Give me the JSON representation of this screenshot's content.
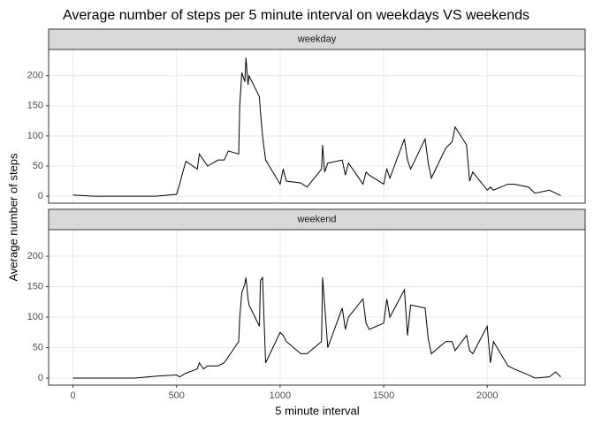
{
  "chart_data": {
    "type": "line",
    "title": "Average number of steps per 5 minute interval on weekdays VS weekends",
    "x_label": "5 minute interval",
    "y_label": "Average number of steps",
    "x": [
      0,
      100,
      200,
      300,
      400,
      500,
      515,
      530,
      545,
      600,
      610,
      630,
      650,
      700,
      730,
      750,
      800,
      805,
      815,
      830,
      835,
      845,
      850,
      900,
      905,
      915,
      930,
      1000,
      1015,
      1030,
      1100,
      1130,
      1200,
      1205,
      1215,
      1230,
      1300,
      1315,
      1330,
      1400,
      1415,
      1430,
      1500,
      1515,
      1530,
      1600,
      1615,
      1630,
      1700,
      1715,
      1730,
      1800,
      1830,
      1845,
      1900,
      1915,
      1930,
      2000,
      2015,
      2030,
      2100,
      2130,
      2200,
      2230,
      2300,
      2330,
      2355
    ],
    "series": [
      {
        "name": "weekday",
        "color": "#000000",
        "values": [
          2,
          0,
          0,
          0,
          0,
          3,
          20,
          40,
          58,
          45,
          70,
          60,
          50,
          60,
          60,
          75,
          70,
          150,
          205,
          190,
          230,
          185,
          200,
          165,
          140,
          100,
          60,
          20,
          45,
          25,
          22,
          15,
          45,
          85,
          40,
          55,
          60,
          35,
          55,
          20,
          40,
          35,
          20,
          45,
          30,
          95,
          60,
          45,
          95,
          55,
          30,
          80,
          90,
          115,
          85,
          25,
          40,
          10,
          15,
          10,
          20,
          20,
          15,
          5,
          10,
          5,
          1
        ]
      },
      {
        "name": "weekend",
        "color": "#000000",
        "values": [
          0,
          0,
          0,
          0,
          3,
          5,
          2,
          5,
          8,
          15,
          25,
          15,
          20,
          20,
          25,
          35,
          60,
          100,
          140,
          155,
          165,
          130,
          120,
          85,
          160,
          165,
          25,
          75,
          70,
          60,
          40,
          40,
          60,
          165,
          120,
          50,
          115,
          80,
          100,
          130,
          90,
          80,
          90,
          130,
          100,
          145,
          70,
          120,
          115,
          65,
          40,
          60,
          60,
          45,
          70,
          45,
          40,
          85,
          25,
          60,
          20,
          15,
          5,
          0,
          2,
          10,
          2
        ]
      }
    ],
    "xlim": [
      -117.75,
      2472.75
    ],
    "xticks": [
      0,
      500,
      1000,
      1500,
      2000
    ],
    "ylim": [
      -11.6,
      243.6
    ],
    "yticks": [
      0,
      50,
      100,
      150,
      200
    ],
    "grid": true
  }
}
